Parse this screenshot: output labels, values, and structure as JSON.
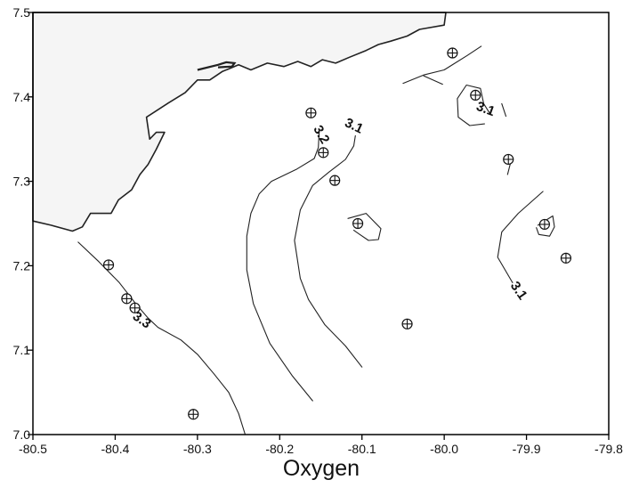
{
  "chart_data": {
    "type": "contour",
    "title": "Oxygen",
    "xlabel": "",
    "ylabel": "",
    "xlim": [
      -80.5,
      -79.8
    ],
    "ylim": [
      7.0,
      7.5
    ],
    "x_ticks": [
      "-80.5",
      "-80.4",
      "-80.3",
      "-80.2",
      "-80.1",
      "-80.0",
      "-79.9",
      "-79.8"
    ],
    "y_ticks": [
      "7.0",
      "7.1",
      "7.2",
      "7.3",
      "7.4",
      "7.5"
    ],
    "contour_labels": [
      {
        "text": "3.3",
        "x": -80.368,
        "y": 7.135
      },
      {
        "text": "3.2",
        "x": -80.15,
        "y": 7.355
      },
      {
        "text": "3.1",
        "x": -80.11,
        "y": 7.365
      },
      {
        "text": "3.1",
        "x": -79.95,
        "y": 7.385
      },
      {
        "text": "3.1",
        "x": -79.91,
        "y": 7.17
      }
    ],
    "stations": [
      {
        "x": -79.99,
        "y": 7.452
      },
      {
        "x": -79.962,
        "y": 7.402
      },
      {
        "x": -80.162,
        "y": 7.381
      },
      {
        "x": -80.147,
        "y": 7.334
      },
      {
        "x": -79.922,
        "y": 7.326
      },
      {
        "x": -80.133,
        "y": 7.301
      },
      {
        "x": -80.105,
        "y": 7.25
      },
      {
        "x": -79.878,
        "y": 7.249
      },
      {
        "x": -79.852,
        "y": 7.209
      },
      {
        "x": -80.408,
        "y": 7.201
      },
      {
        "x": -80.386,
        "y": 7.161
      },
      {
        "x": -80.376,
        "y": 7.15
      },
      {
        "x": -80.045,
        "y": 7.131
      },
      {
        "x": -80.305,
        "y": 7.024
      }
    ],
    "contours": [
      {
        "level": "3.3",
        "points": [
          [
            -80.445,
            7.228
          ],
          [
            -80.42,
            7.205
          ],
          [
            -80.395,
            7.18
          ],
          [
            -80.375,
            7.155
          ],
          [
            -80.36,
            7.138
          ],
          [
            -80.348,
            7.127
          ],
          [
            -80.32,
            7.112
          ],
          [
            -80.3,
            7.095
          ],
          [
            -80.28,
            7.072
          ],
          [
            -80.262,
            7.05
          ],
          [
            -80.25,
            7.025
          ],
          [
            -80.242,
            7.0
          ]
        ]
      },
      {
        "level": "3.2",
        "points": [
          [
            -80.152,
            7.36
          ],
          [
            -80.153,
            7.34
          ],
          [
            -80.158,
            7.327
          ],
          [
            -80.18,
            7.314
          ],
          [
            -80.21,
            7.3
          ],
          [
            -80.225,
            7.285
          ],
          [
            -80.235,
            7.262
          ],
          [
            -80.24,
            7.235
          ],
          [
            -80.24,
            7.195
          ],
          [
            -80.232,
            7.155
          ],
          [
            -80.212,
            7.108
          ],
          [
            -80.185,
            7.07
          ],
          [
            -80.16,
            7.04
          ]
        ]
      },
      {
        "level": "3.1",
        "points": [
          [
            -80.108,
            7.354
          ],
          [
            -80.11,
            7.342
          ],
          [
            -80.12,
            7.326
          ],
          [
            -80.14,
            7.311
          ],
          [
            -80.16,
            7.295
          ],
          [
            -80.175,
            7.266
          ],
          [
            -80.182,
            7.23
          ],
          [
            -80.175,
            7.185
          ],
          [
            -80.165,
            7.16
          ],
          [
            -80.145,
            7.13
          ],
          [
            -80.12,
            7.105
          ],
          [
            -80.1,
            7.08
          ]
        ]
      },
      {
        "level": "3.1",
        "points": [
          [
            -80.002,
            7.415
          ],
          [
            -80.025,
            7.425
          ]
        ]
      },
      {
        "level": "3.1",
        "points": [
          [
            -80.05,
            7.416
          ],
          [
            -80.025,
            7.426
          ],
          [
            -80.0,
            7.432
          ],
          [
            -79.972,
            7.449
          ],
          [
            -79.955,
            7.46
          ]
        ]
      },
      {
        "level": "3.1",
        "points": [
          [
            -79.951,
            7.368
          ],
          [
            -79.969,
            7.366
          ],
          [
            -79.983,
            7.376
          ],
          [
            -79.984,
            7.398
          ],
          [
            -79.973,
            7.414
          ],
          [
            -79.956,
            7.41
          ],
          [
            -79.952,
            7.392
          ],
          [
            -79.945,
            7.381
          ]
        ]
      },
      {
        "level": "3.1",
        "points": [
          [
            -79.93,
            7.392
          ],
          [
            -79.925,
            7.377
          ]
        ]
      },
      {
        "level": "3.1",
        "points": [
          [
            -80.117,
            7.256
          ],
          [
            -80.095,
            7.262
          ],
          [
            -80.077,
            7.244
          ],
          [
            -80.08,
            7.231
          ],
          [
            -80.092,
            7.23
          ],
          [
            -80.104,
            7.238
          ],
          [
            -80.11,
            7.242
          ]
        ]
      },
      {
        "level": "3.1",
        "points": [
          [
            -79.886,
            7.248
          ],
          [
            -79.868,
            7.259
          ],
          [
            -79.866,
            7.246
          ],
          [
            -79.872,
            7.235
          ],
          [
            -79.885,
            7.237
          ],
          [
            -79.888,
            7.245
          ]
        ]
      },
      {
        "level": "3.1",
        "points": [
          [
            -79.917,
            7.18
          ],
          [
            -79.935,
            7.21
          ],
          [
            -79.93,
            7.24
          ],
          [
            -79.91,
            7.262
          ],
          [
            -79.88,
            7.288
          ]
        ]
      },
      {
        "level": "3.1",
        "points": [
          [
            -79.923,
            7.308
          ],
          [
            -79.918,
            7.327
          ]
        ]
      }
    ],
    "coastline": [
      [
        -80.5,
        7.253
      ],
      [
        -80.478,
        7.248
      ],
      [
        -80.452,
        7.241
      ],
      [
        -80.44,
        7.246
      ],
      [
        -80.43,
        7.262
      ],
      [
        -80.405,
        7.262
      ],
      [
        -80.396,
        7.278
      ],
      [
        -80.38,
        7.29
      ],
      [
        -80.37,
        7.308
      ],
      [
        -80.36,
        7.32
      ],
      [
        -80.35,
        7.338
      ],
      [
        -80.34,
        7.358
      ],
      [
        -80.35,
        7.358
      ],
      [
        -80.358,
        7.35
      ],
      [
        -80.362,
        7.376
      ],
      [
        -80.335,
        7.393
      ],
      [
        -80.315,
        7.405
      ],
      [
        -80.3,
        7.42
      ],
      [
        -80.285,
        7.42
      ],
      [
        -80.27,
        7.43
      ],
      [
        -80.25,
        7.438
      ],
      [
        -80.235,
        7.432
      ],
      [
        -80.215,
        7.44
      ],
      [
        -80.195,
        7.436
      ],
      [
        -80.178,
        7.442
      ],
      [
        -80.162,
        7.436
      ],
      [
        -80.148,
        7.444
      ],
      [
        -80.132,
        7.44
      ],
      [
        -80.115,
        7.447
      ],
      [
        -80.095,
        7.455
      ],
      [
        -80.08,
        7.462
      ],
      [
        -80.065,
        7.466
      ],
      [
        -80.045,
        7.472
      ],
      [
        -80.03,
        7.48
      ],
      [
        -80.0,
        7.485
      ],
      [
        -79.998,
        7.5
      ],
      [
        -80.5,
        7.5
      ]
    ],
    "peninsula": [
      [
        -80.3,
        7.432
      ],
      [
        -80.275,
        7.438
      ],
      [
        -80.265,
        7.441
      ],
      [
        -80.255,
        7.44
      ],
      [
        -80.258,
        7.436
      ],
      [
        -80.275,
        7.435
      ]
    ],
    "colors": {
      "line": "#222222",
      "land": "#f5f5f5",
      "axis": "#000000"
    }
  }
}
